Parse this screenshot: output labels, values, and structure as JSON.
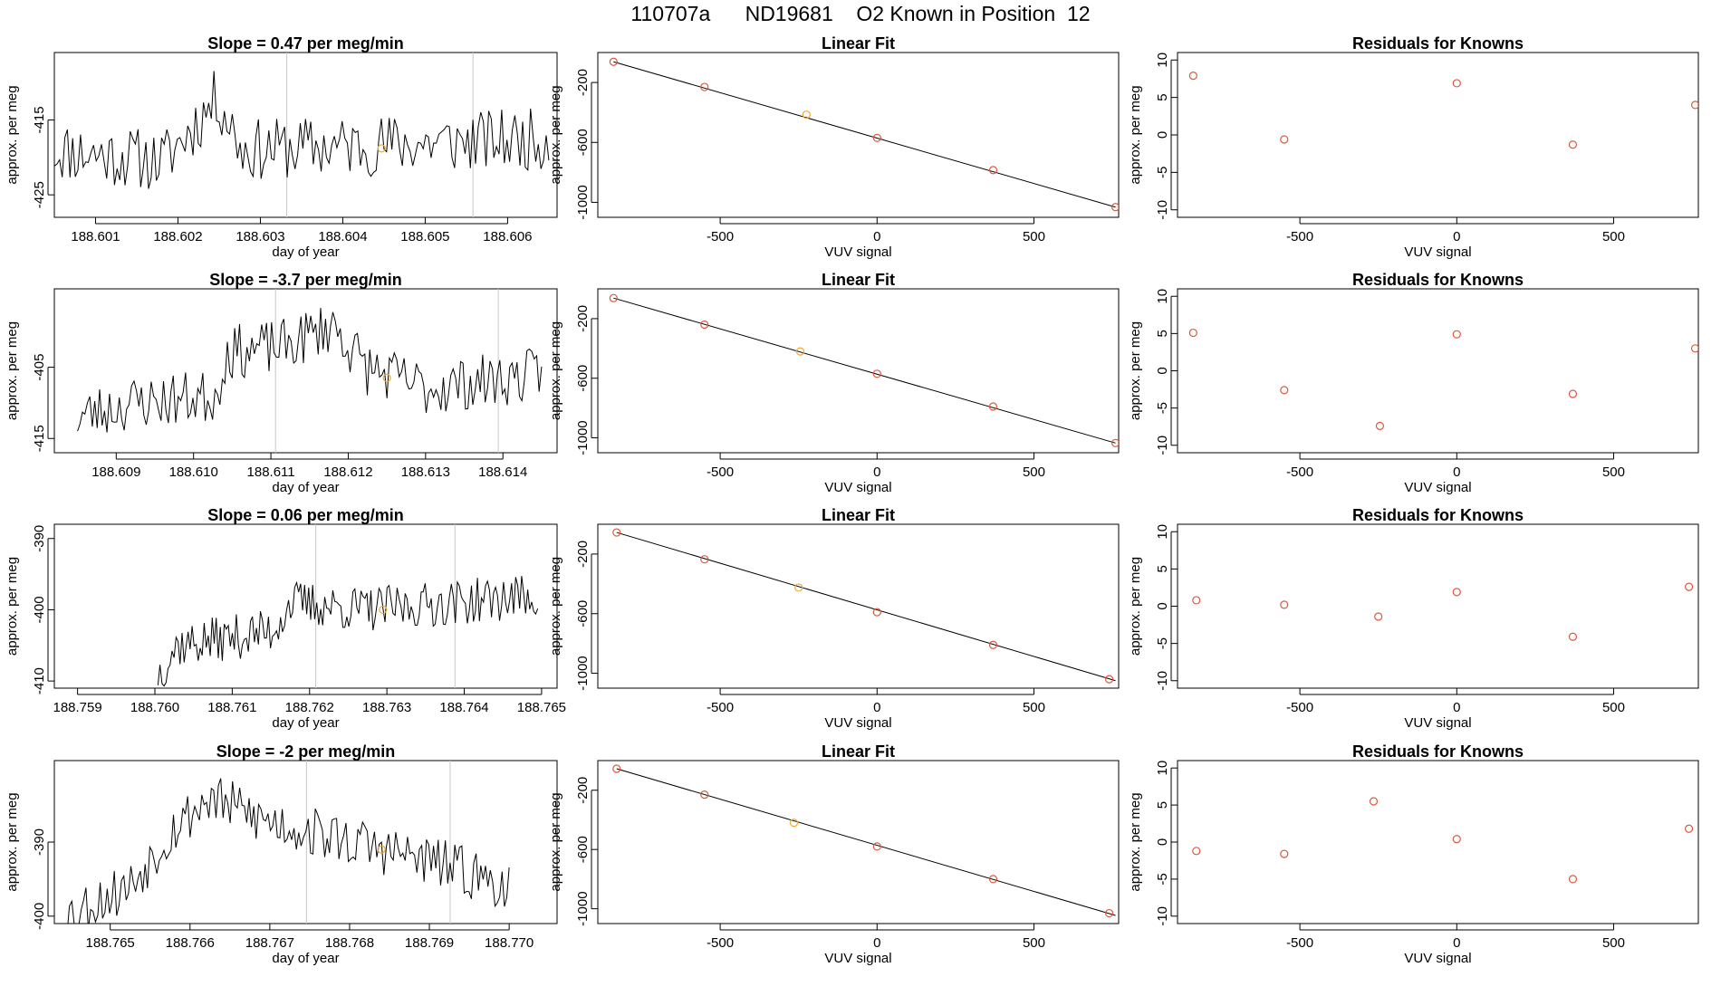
{
  "figure_title": "110707a      ND19681    O2 Known in Position  12",
  "colors": {
    "line": "#000000",
    "grid": "#c8c8c8",
    "residual_point": "#d9593b",
    "highlight_point": "#f0a830",
    "axis": "#000000"
  },
  "chart_data": [
    {
      "type": "line",
      "row": 1,
      "col": 1,
      "title": "Slope =  0.47  per meg/min",
      "xlabel": "day of year",
      "ylabel": "approx. per meg",
      "xlim": [
        188.6005,
        188.6066
      ],
      "ylim": [
        -428,
        -406
      ],
      "xticks": [
        188.601,
        188.602,
        188.603,
        188.604,
        188.605,
        188.606
      ],
      "xtick_labels": [
        "188.601",
        "188.602",
        "188.603",
        "188.604",
        "188.605",
        "188.606"
      ],
      "yticks": [
        -425,
        -415
      ],
      "ytick_labels": [
        "-425",
        "-415"
      ],
      "vlines": [
        188.60332,
        188.60558
      ],
      "highlight": {
        "x": 188.60447,
        "y": -418.8
      },
      "x_start": 188.6005,
      "x_end": 188.6065,
      "base": -419,
      "amplitude": 2.6,
      "seed": 11,
      "segments": [
        [
          0,
          0
        ],
        [
          0.22,
          -1.5
        ],
        [
          0.28,
          3
        ],
        [
          0.33,
          7
        ],
        [
          0.38,
          0
        ],
        [
          1,
          1.5
        ]
      ]
    },
    {
      "type": "scatter",
      "row": 1,
      "col": 2,
      "title": "Linear Fit",
      "xlabel": "VUV signal",
      "ylabel": "approx. per meg",
      "xlim": [
        -890,
        770
      ],
      "ylim": [
        -1100,
        0
      ],
      "xticks": [
        -500,
        0,
        500
      ],
      "xtick_labels": [
        "-500",
        "0",
        "500"
      ],
      "yticks": [
        -1000,
        -600,
        -200
      ],
      "ytick_labels": [
        "-1000",
        "-600",
        "-200"
      ],
      "x": [
        -840,
        -550,
        -225,
        0,
        370,
        760
      ],
      "y": [
        -62,
        -230,
        -415,
        -570,
        -785,
        -1032
      ],
      "highlight_index": 2,
      "fit": {
        "x": [
          -840,
          760
        ],
        "y": [
          -62,
          -1032
        ]
      }
    },
    {
      "type": "scatter",
      "row": 1,
      "col": 3,
      "title": "Residuals for Knowns",
      "xlabel": "VUV signal",
      "ylabel": "approx. per meg",
      "xlim": [
        -890,
        770
      ],
      "ylim": [
        -11,
        11
      ],
      "xticks": [
        -500,
        0,
        500
      ],
      "xtick_labels": [
        "-500",
        "0",
        "500"
      ],
      "yticks": [
        -10,
        -5,
        0,
        5,
        10
      ],
      "ytick_labels": [
        "-10",
        "-5",
        "0",
        "5",
        "10"
      ],
      "x": [
        -840,
        -550,
        0,
        370,
        760
      ],
      "y": [
        7.9,
        -0.6,
        6.9,
        -1.3,
        4.0
      ]
    },
    {
      "type": "line",
      "row": 2,
      "col": 1,
      "title": "Slope =  -3.7  per meg/min",
      "xlabel": "day of year",
      "ylabel": "approx. per meg",
      "xlim": [
        188.6082,
        188.6147
      ],
      "ylim": [
        -417,
        -394
      ],
      "xticks": [
        188.609,
        188.61,
        188.611,
        188.612,
        188.613,
        188.614
      ],
      "xtick_labels": [
        "188.609",
        "188.610",
        "188.611",
        "188.612",
        "188.613",
        "188.614"
      ],
      "yticks": [
        -415,
        -405
      ],
      "ytick_labels": [
        "-415",
        "-405"
      ],
      "vlines": [
        188.61106,
        188.61394
      ],
      "highlight": {
        "x": 188.6125,
        "y": -406.5
      },
      "x_start": 188.6085,
      "x_end": 188.6145,
      "base": -410,
      "amplitude": 2.4,
      "seed": 23,
      "segments": [
        [
          0,
          -2
        ],
        [
          0.12,
          0
        ],
        [
          0.3,
          1
        ],
        [
          0.32,
          7
        ],
        [
          0.45,
          8
        ],
        [
          0.55,
          11
        ],
        [
          0.62,
          5
        ],
        [
          0.75,
          2
        ],
        [
          1,
          4
        ]
      ]
    },
    {
      "type": "scatter",
      "row": 2,
      "col": 2,
      "title": "Linear Fit",
      "xlabel": "VUV signal",
      "ylabel": "approx. per meg",
      "xlim": [
        -890,
        770
      ],
      "ylim": [
        -1100,
        0
      ],
      "xticks": [
        -500,
        0,
        500
      ],
      "xtick_labels": [
        "-500",
        "0",
        "500"
      ],
      "yticks": [
        -1000,
        -600,
        -200
      ],
      "ytick_labels": [
        "-1000",
        "-600",
        "-200"
      ],
      "x": [
        -840,
        -550,
        -245,
        0,
        370,
        760
      ],
      "y": [
        -62,
        -240,
        -420,
        -570,
        -790,
        -1035
      ],
      "highlight_index": 2,
      "fit": {
        "x": [
          -840,
          760
        ],
        "y": [
          -62,
          -1035
        ]
      }
    },
    {
      "type": "scatter",
      "row": 2,
      "col": 3,
      "title": "Residuals for Knowns",
      "xlabel": "VUV signal",
      "ylabel": "approx. per meg",
      "xlim": [
        -890,
        770
      ],
      "ylim": [
        -11,
        11
      ],
      "xticks": [
        -500,
        0,
        500
      ],
      "xtick_labels": [
        "-500",
        "0",
        "500"
      ],
      "yticks": [
        -10,
        -5,
        0,
        5,
        10
      ],
      "ytick_labels": [
        "-10",
        "-5",
        "0",
        "5",
        "10"
      ],
      "x": [
        -840,
        -550,
        -245,
        0,
        370,
        760
      ],
      "y": [
        5.1,
        -2.6,
        -7.4,
        4.9,
        -3.1,
        3.0
      ]
    },
    {
      "type": "line",
      "row": 3,
      "col": 1,
      "title": "Slope =  0.06  per meg/min",
      "xlabel": "day of year",
      "ylabel": "approx. per meg",
      "xlim": [
        188.7587,
        188.7652
      ],
      "ylim": [
        -411,
        -388
      ],
      "xticks": [
        188.759,
        188.76,
        188.761,
        188.762,
        188.763,
        188.764,
        188.765
      ],
      "xtick_labels": [
        "188.759",
        "188.760",
        "188.761",
        "188.762",
        "188.763",
        "188.764",
        "188.765"
      ],
      "yticks": [
        -410,
        -400,
        -390
      ],
      "ytick_labels": [
        "-410",
        "-400",
        "-390"
      ],
      "vlines": [
        188.76208,
        188.76388
      ],
      "highlight": {
        "x": 188.76295,
        "y": -400
      },
      "x_start": 188.76004,
      "x_end": 188.76495,
      "base": -404,
      "amplitude": 2.0,
      "seed": 37,
      "segments": [
        [
          0,
          -5
        ],
        [
          0.05,
          -1
        ],
        [
          0.3,
          1
        ],
        [
          0.35,
          5
        ],
        [
          0.55,
          4
        ],
        [
          1,
          6
        ]
      ]
    },
    {
      "type": "scatter",
      "row": 3,
      "col": 2,
      "title": "Linear Fit",
      "xlabel": "VUV signal",
      "ylabel": "approx. per meg",
      "xlim": [
        -890,
        770
      ],
      "ylim": [
        -1100,
        0
      ],
      "xticks": [
        -500,
        0,
        500
      ],
      "xtick_labels": [
        "-500",
        "0",
        "500"
      ],
      "yticks": [
        -1000,
        -600,
        -200
      ],
      "ytick_labels": [
        "-1000",
        "-600",
        "-200"
      ],
      "x": [
        -830,
        -550,
        -250,
        0,
        370,
        740
      ],
      "y": [
        -55,
        -235,
        -425,
        -590,
        -810,
        -1040
      ],
      "highlight_index": 2,
      "fit": {
        "x": [
          -830,
          760
        ],
        "y": [
          -55,
          -1050
        ]
      }
    },
    {
      "type": "scatter",
      "row": 3,
      "col": 3,
      "title": "Residuals for Knowns",
      "xlabel": "VUV signal",
      "ylabel": "approx. per meg",
      "xlim": [
        -890,
        770
      ],
      "ylim": [
        -11,
        11
      ],
      "xticks": [
        -500,
        0,
        500
      ],
      "xtick_labels": [
        "-500",
        "0",
        "500"
      ],
      "yticks": [
        -10,
        -5,
        0,
        5,
        10
      ],
      "ytick_labels": [
        "-10",
        "-5",
        "0",
        "5",
        "10"
      ],
      "x": [
        -830,
        -550,
        -250,
        0,
        370,
        740
      ],
      "y": [
        0.8,
        0.2,
        -1.4,
        1.9,
        -4.1,
        2.6
      ]
    },
    {
      "type": "line",
      "row": 4,
      "col": 1,
      "title": "Slope =  -2  per meg/min",
      "xlabel": "day of year",
      "ylabel": "approx. per meg",
      "xlim": [
        188.7643,
        188.7706
      ],
      "ylim": [
        -401,
        -379
      ],
      "xticks": [
        188.765,
        188.766,
        188.767,
        188.768,
        188.769,
        188.77
      ],
      "xtick_labels": [
        "188.765",
        "188.766",
        "188.767",
        "188.768",
        "188.769",
        "188.770"
      ],
      "yticks": [
        -400,
        -390
      ],
      "ytick_labels": [
        "-400",
        "-390"
      ],
      "vlines": [
        188.76746,
        188.76926
      ],
      "highlight": {
        "x": 188.7684,
        "y": -391
      },
      "x_start": 188.7644,
      "x_end": 188.77,
      "base": -390,
      "amplitude": 2.2,
      "seed": 53,
      "segments": [
        [
          0,
          -10
        ],
        [
          0.15,
          -6
        ],
        [
          0.25,
          2
        ],
        [
          0.33,
          6
        ],
        [
          0.45,
          3
        ],
        [
          0.65,
          0
        ],
        [
          0.85,
          -3
        ],
        [
          1,
          -6
        ]
      ]
    },
    {
      "type": "scatter",
      "row": 4,
      "col": 2,
      "title": "Linear Fit",
      "xlabel": "VUV signal",
      "ylabel": "approx. per meg",
      "xlim": [
        -890,
        770
      ],
      "ylim": [
        -1100,
        0
      ],
      "xticks": [
        -500,
        0,
        500
      ],
      "xtick_labels": [
        "-500",
        "0",
        "500"
      ],
      "yticks": [
        -1000,
        -600,
        -200
      ],
      "ytick_labels": [
        "-1000",
        "-600",
        "-200"
      ],
      "x": [
        -830,
        -550,
        -265,
        0,
        370,
        740
      ],
      "y": [
        -55,
        -230,
        -420,
        -580,
        -800,
        -1030
      ],
      "highlight_index": 2,
      "fit": {
        "x": [
          -830,
          760
        ],
        "y": [
          -55,
          -1045
        ]
      }
    },
    {
      "type": "scatter",
      "row": 4,
      "col": 3,
      "title": "Residuals for Knowns",
      "xlabel": "VUV signal",
      "ylabel": "approx. per meg",
      "xlim": [
        -890,
        770
      ],
      "ylim": [
        -11,
        11
      ],
      "xticks": [
        -500,
        0,
        500
      ],
      "xtick_labels": [
        "-500",
        "0",
        "500"
      ],
      "yticks": [
        -10,
        -5,
        0,
        5,
        10
      ],
      "ytick_labels": [
        "-10",
        "-5",
        "0",
        "5",
        "10"
      ],
      "x": [
        -830,
        -550,
        -265,
        0,
        370,
        740
      ],
      "y": [
        -1.2,
        -1.6,
        5.5,
        0.4,
        -5.0,
        1.8
      ]
    }
  ]
}
